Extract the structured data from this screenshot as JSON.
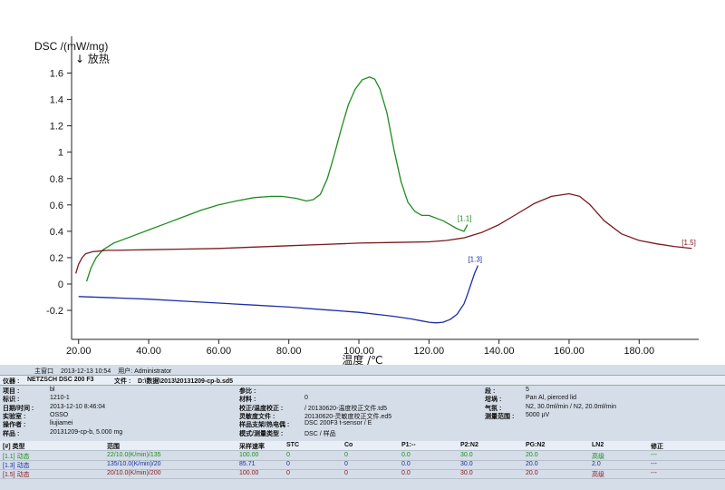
{
  "chart_data": {
    "type": "line",
    "ylabel": "DSC /(mW/mg)",
    "ylabel_sub": "↓ 放热",
    "xlabel": "温度 /℃",
    "xlim": [
      18,
      197
    ],
    "ylim": [
      -0.42,
      1.7
    ],
    "x_ticks": [
      "20.00",
      "40.00",
      "60.00",
      "80.00",
      "100.00",
      "120.00",
      "140.00",
      "160.00",
      "180.00"
    ],
    "x_tick_values": [
      20,
      40,
      60,
      80,
      100,
      120,
      140,
      160,
      180
    ],
    "y_ticks": [
      "1.6",
      "1.4",
      "1.2",
      "1",
      "0.8",
      "0.6",
      "0.4",
      "0.2",
      "0",
      "-0.2"
    ],
    "y_tick_values": [
      1.6,
      1.4,
      1.2,
      1.0,
      0.8,
      0.6,
      0.4,
      0.2,
      0.0,
      -0.2
    ],
    "series": [
      {
        "name": "[1.1]",
        "color": "#1e8c1e",
        "x": [
          22.3,
          23.5,
          25,
          27,
          30,
          35,
          40,
          45,
          50,
          55,
          60,
          65,
          70,
          75,
          78,
          82,
          85,
          87,
          89,
          91,
          93,
          95,
          97,
          99,
          101,
          103,
          104.5,
          106,
          108,
          110,
          112,
          114,
          116,
          118,
          120,
          121,
          122,
          124,
          126,
          128,
          130,
          131
        ],
        "y": [
          0.02,
          0.12,
          0.2,
          0.26,
          0.31,
          0.36,
          0.41,
          0.46,
          0.51,
          0.56,
          0.6,
          0.63,
          0.655,
          0.665,
          0.665,
          0.65,
          0.63,
          0.64,
          0.68,
          0.8,
          0.98,
          1.18,
          1.36,
          1.48,
          1.55,
          1.57,
          1.555,
          1.48,
          1.3,
          1.02,
          0.78,
          0.62,
          0.55,
          0.52,
          0.52,
          0.51,
          0.5,
          0.48,
          0.45,
          0.42,
          0.4,
          0.45
        ]
      },
      {
        "name": "[1.3]",
        "color": "#1c2ea8",
        "x": [
          20,
          30,
          40,
          50,
          60,
          70,
          80,
          90,
          100,
          105,
          110,
          115,
          118,
          120,
          122,
          124,
          126,
          128,
          130,
          131,
          132,
          133,
          134
        ],
        "y": [
          -0.095,
          -0.105,
          -0.115,
          -0.13,
          -0.145,
          -0.16,
          -0.175,
          -0.195,
          -0.215,
          -0.23,
          -0.245,
          -0.265,
          -0.28,
          -0.29,
          -0.295,
          -0.29,
          -0.27,
          -0.23,
          -0.15,
          -0.08,
          0.0,
          0.08,
          0.14
        ]
      },
      {
        "name": "[1.5]",
        "color": "#7a1a1e",
        "x": [
          19.2,
          20,
          21,
          22,
          24,
          26,
          28,
          30,
          35,
          40,
          50,
          60,
          70,
          80,
          90,
          100,
          110,
          120,
          125,
          130,
          135,
          140,
          145,
          150,
          155,
          160,
          163,
          166,
          170,
          175,
          180,
          185,
          190,
          195
        ],
        "y": [
          0.08,
          0.15,
          0.2,
          0.23,
          0.245,
          0.25,
          0.255,
          0.255,
          0.258,
          0.26,
          0.265,
          0.27,
          0.28,
          0.29,
          0.3,
          0.31,
          0.315,
          0.32,
          0.33,
          0.35,
          0.39,
          0.45,
          0.53,
          0.61,
          0.665,
          0.685,
          0.665,
          0.6,
          0.48,
          0.38,
          0.33,
          0.305,
          0.285,
          0.27
        ]
      }
    ]
  },
  "status": {
    "label1": "主窗口",
    "date": "2013-12-13 10:54",
    "user_label": "用户: Administrator"
  },
  "header": {
    "instrument_label": "仪器 :",
    "instrument": "NETZSCH DSC 200 F3",
    "file_label": "文件 :",
    "file": "D:\\数据\\2013\\20131209-cp-b.sd5"
  },
  "info": {
    "left": [
      {
        "label": "项目 :",
        "value": "bl"
      },
      {
        "label": "标识 :",
        "value": "1210-1"
      },
      {
        "label": "日期/时间 :",
        "value": "2013-12-10 8:46:04"
      },
      {
        "label": "实验室 :",
        "value": "OSSO"
      },
      {
        "label": "操作者 :",
        "value": "liujiamei"
      },
      {
        "label": "样品 :",
        "value": "20131209-cp-b, 5.000 mg"
      }
    ],
    "mid": [
      {
        "label": "参比 :",
        "value": ""
      },
      {
        "label": "材料 :",
        "value": "0"
      },
      {
        "label": "校正/温度校正 :",
        "value": "/ 20130620-温度校正文件.td5"
      },
      {
        "label": "灵敏度文件 :",
        "value": "20130620-灵敏度校正文件.ed5"
      },
      {
        "label": "样品支架/热电偶 :",
        "value": "DSC 200F3 t-sensor / E"
      },
      {
        "label": "模式/测量类型 :",
        "value": "DSC / 样品"
      }
    ],
    "right": [
      {
        "label": "段 :",
        "value": "5"
      },
      {
        "label": "坩埚 :",
        "value": "Pan Al, pierced lid"
      },
      {
        "label": "气氛 :",
        "value": "N2, 30.0ml/min / N2, 20.0ml/min"
      },
      {
        "label": "测量范围 :",
        "value": "5000 µV"
      }
    ]
  },
  "table": {
    "headers": [
      "[#] 类型",
      "范围",
      "采样速率",
      "STC",
      "Co",
      "P1:--",
      "P2:N2",
      "PG:N2",
      "LN2",
      "修正"
    ],
    "rows": [
      {
        "color": "#1e8c1e",
        "cells": [
          "[1.1] 动态",
          "22/10.0(K/min)/135",
          "100.00",
          "0",
          "0",
          "0.0",
          "30.0",
          "20.0",
          "高级",
          "---"
        ]
      },
      {
        "color": "#1c2ea8",
        "cells": [
          "[1.3] 动态",
          "135/10.0(K/min)/20",
          "85.71",
          "0",
          "0",
          "0.0",
          "30.0",
          "20.0",
          "2.0",
          "---"
        ]
      },
      {
        "color": "#8a1a1e",
        "cells": [
          "[1.5] 动态",
          "20/10.0(K/min)/200",
          "100.00",
          "0",
          "0",
          "0.0",
          "30.0",
          "20.0",
          "高级",
          "---"
        ]
      }
    ]
  }
}
